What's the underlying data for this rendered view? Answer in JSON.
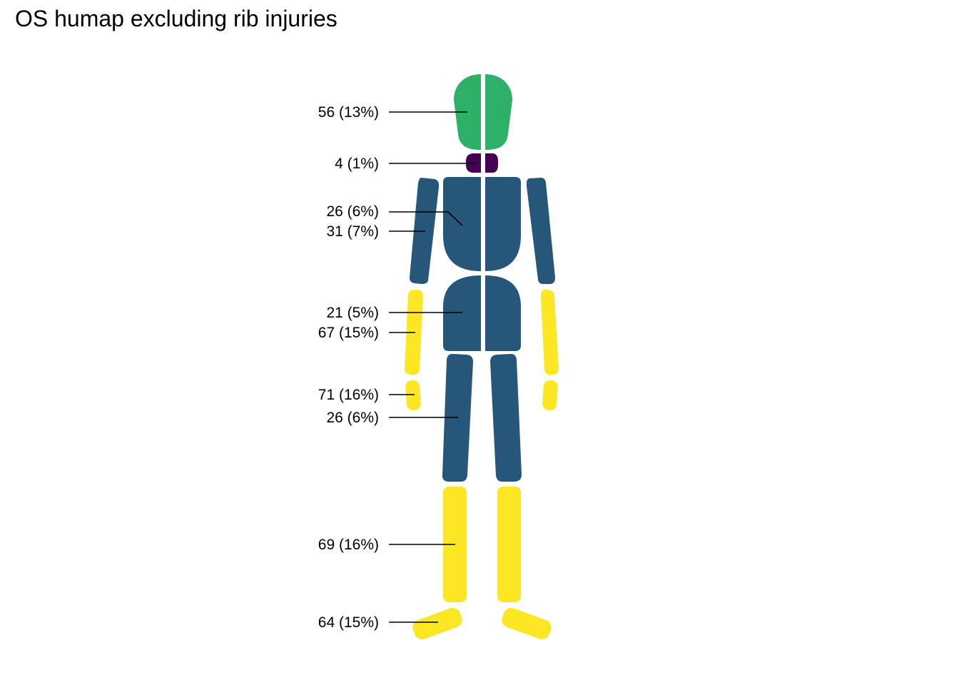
{
  "chart_data": {
    "type": "body_map",
    "title": "OS humap excluding rib injuries",
    "colors": {
      "low": "#440154",
      "mid": "#26567a",
      "high_green": "#2db067",
      "max": "#fde725",
      "divider": "#ffffff"
    },
    "regions": [
      {
        "region": "head",
        "label": "56 (13%)",
        "count": 56,
        "percent": 13,
        "color": "#2db067"
      },
      {
        "region": "neck",
        "label": "4 (1%)",
        "count": 4,
        "percent": 1,
        "color": "#440154"
      },
      {
        "region": "chest",
        "label": "26 (6%)",
        "count": 26,
        "percent": 6,
        "color": "#26567a"
      },
      {
        "region": "upper-arm",
        "label": "31 (7%)",
        "count": 31,
        "percent": 7,
        "color": "#26567a"
      },
      {
        "region": "abdomen-pelvis",
        "label": "21 (5%)",
        "count": 21,
        "percent": 5,
        "color": "#26567a"
      },
      {
        "region": "forearm",
        "label": "67 (15%)",
        "count": 67,
        "percent": 15,
        "color": "#fde725"
      },
      {
        "region": "hand",
        "label": "71 (16%)",
        "count": 71,
        "percent": 16,
        "color": "#fde725"
      },
      {
        "region": "thigh",
        "label": "26 (6%)",
        "count": 26,
        "percent": 6,
        "color": "#26567a"
      },
      {
        "region": "lower-leg",
        "label": "69 (16%)",
        "count": 69,
        "percent": 16,
        "color": "#fde725"
      },
      {
        "region": "foot",
        "label": "64 (15%)",
        "count": 64,
        "percent": 15,
        "color": "#fde725"
      }
    ]
  }
}
